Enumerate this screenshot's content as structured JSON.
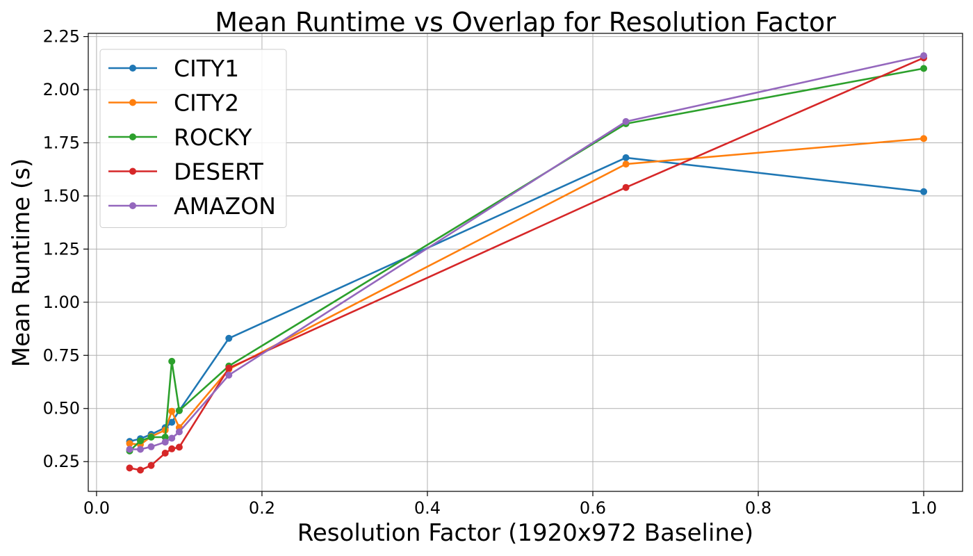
{
  "chart_data": {
    "type": "line",
    "title": "Mean Runtime vs Overlap for Resolution Factor",
    "xlabel": "Resolution Factor (1920x972 Baseline)",
    "ylabel": "Mean Runtime (s)",
    "xlim": [
      -0.01,
      1.047
    ],
    "ylim": [
      0.11,
      2.265
    ],
    "x_ticks": [
      0.0,
      0.2,
      0.4,
      0.6,
      0.8,
      1.0
    ],
    "x_tick_labels": [
      "0.0",
      "0.2",
      "0.4",
      "0.6",
      "0.8",
      "1.0"
    ],
    "y_ticks": [
      0.25,
      0.5,
      0.75,
      1.0,
      1.25,
      1.5,
      1.75,
      2.0,
      2.25
    ],
    "y_tick_labels": [
      "0.25",
      "0.50",
      "0.75",
      "1.00",
      "1.25",
      "1.50",
      "1.75",
      "2.00",
      "2.25"
    ],
    "grid": true,
    "legend_position": "top-left",
    "series": [
      {
        "name": "CITY1",
        "color": "#1f77b4",
        "points": [
          [
            0.04,
            0.345
          ],
          [
            0.053,
            0.358
          ],
          [
            0.066,
            0.378
          ],
          [
            0.083,
            0.41
          ],
          [
            0.091,
            0.435
          ],
          [
            0.1,
            0.49
          ],
          [
            0.16,
            0.83
          ],
          [
            0.64,
            1.68
          ],
          [
            1.0,
            1.52
          ]
        ]
      },
      {
        "name": "CITY2",
        "color": "#ff7f0e",
        "points": [
          [
            0.04,
            0.335
          ],
          [
            0.053,
            0.33
          ],
          [
            0.066,
            0.368
          ],
          [
            0.083,
            0.398
          ],
          [
            0.091,
            0.487
          ],
          [
            0.1,
            0.41
          ],
          [
            0.16,
            0.685
          ],
          [
            0.64,
            1.65
          ],
          [
            1.0,
            1.77
          ]
        ]
      },
      {
        "name": "ROCKY",
        "color": "#2ca02c",
        "points": [
          [
            0.04,
            0.3
          ],
          [
            0.053,
            0.348
          ],
          [
            0.066,
            0.365
          ],
          [
            0.083,
            0.365
          ],
          [
            0.091,
            0.722
          ],
          [
            0.1,
            0.49
          ],
          [
            0.16,
            0.7
          ],
          [
            0.64,
            1.84
          ],
          [
            1.0,
            2.1
          ]
        ]
      },
      {
        "name": "DESERT",
        "color": "#d62728",
        "points": [
          [
            0.04,
            0.22
          ],
          [
            0.053,
            0.21
          ],
          [
            0.066,
            0.232
          ],
          [
            0.083,
            0.29
          ],
          [
            0.091,
            0.31
          ],
          [
            0.1,
            0.318
          ],
          [
            0.16,
            0.69
          ],
          [
            0.64,
            1.54
          ],
          [
            1.0,
            2.15
          ]
        ]
      },
      {
        "name": "AMAZON",
        "color": "#9467bd",
        "points": [
          [
            0.04,
            0.308
          ],
          [
            0.053,
            0.308
          ],
          [
            0.066,
            0.32
          ],
          [
            0.083,
            0.342
          ],
          [
            0.091,
            0.36
          ],
          [
            0.1,
            0.39
          ],
          [
            0.16,
            0.657
          ],
          [
            0.64,
            1.85
          ],
          [
            1.0,
            2.16
          ]
        ]
      }
    ]
  }
}
